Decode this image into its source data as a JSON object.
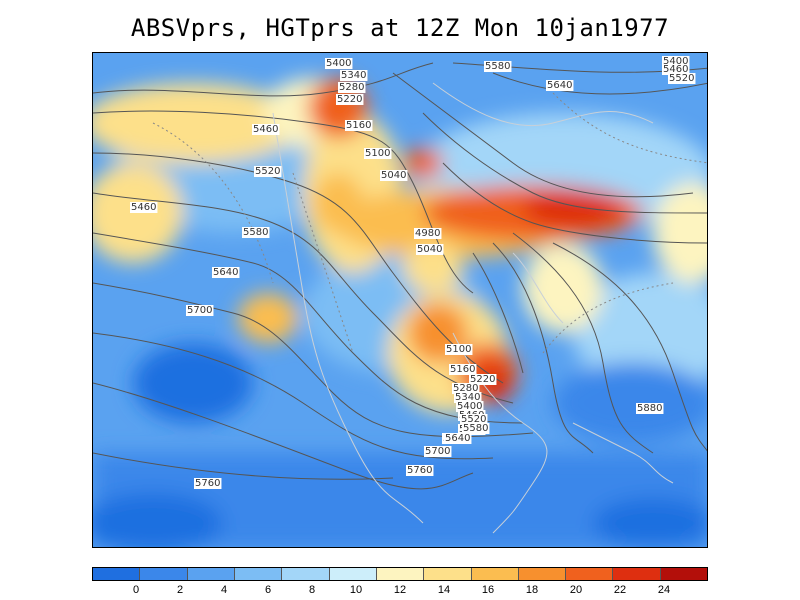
{
  "title": "ABSVprs, HGTprs at 12Z Mon 10jan1977",
  "contour_labels": [
    "5400",
    "5340",
    "5280",
    "5220",
    "5160",
    "5100",
    "5040",
    "4980",
    "5040",
    "5460",
    "5520",
    "5580",
    "5640",
    "5700",
    "5760",
    "5880",
    "5580",
    "5640",
    "5700",
    "5760",
    "5100",
    "5160",
    "5220",
    "5280",
    "5340",
    "5400",
    "5460",
    "5520",
    "5580",
    "5640",
    "5400",
    "5460",
    "5520",
    "5640",
    "5580",
    "5460"
  ],
  "colorbar": {
    "colors": [
      "#1f6fe0",
      "#3b87ea",
      "#5aa2f0",
      "#7cbdf4",
      "#a3d6f8",
      "#cdeefa",
      "#fdf4c0",
      "#fde08a",
      "#fbbd50",
      "#f7902e",
      "#f0611e",
      "#de2f10",
      "#b30f0a"
    ],
    "tick_labels": [
      "0",
      "2",
      "4",
      "6",
      "8",
      "10",
      "12",
      "14",
      "16",
      "18",
      "20",
      "22",
      "24"
    ]
  }
}
